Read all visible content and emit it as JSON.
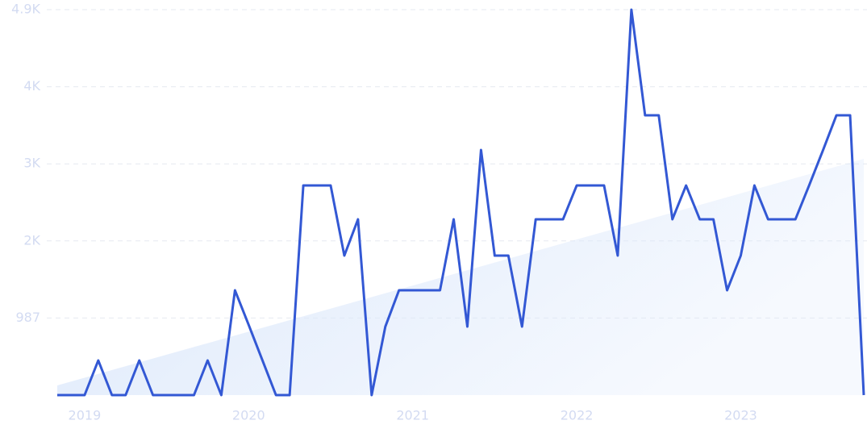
{
  "chart_data": {
    "type": "line",
    "categories": [
      null,
      null,
      "2019",
      null,
      null,
      null,
      null,
      null,
      null,
      null,
      null,
      null,
      null,
      null,
      "2020",
      null,
      null,
      null,
      null,
      null,
      null,
      null,
      null,
      null,
      null,
      null,
      "2021",
      null,
      null,
      null,
      null,
      null,
      null,
      null,
      null,
      null,
      null,
      null,
      "2022",
      null,
      null,
      null,
      null,
      null,
      null,
      null,
      null,
      null,
      null,
      null,
      "2023",
      null,
      null,
      null,
      null,
      null,
      null,
      null,
      null,
      null
    ],
    "series": [
      {
        "color": "#3358d4",
        "values": [
          0,
          0,
          0,
          444,
          0,
          0,
          444,
          0,
          0,
          0,
          0,
          444,
          0,
          1342,
          900,
          450,
          0,
          0,
          2684,
          2684,
          2684,
          1786,
          2251,
          0,
          877,
          1342,
          1342,
          1342,
          1342,
          2251,
          877,
          3139,
          1786,
          1786,
          877,
          2251,
          2251,
          2251,
          2684,
          2684,
          2684,
          1786,
          4935,
          3583,
          3583,
          2251,
          2684,
          2251,
          2251,
          1342,
          1786,
          2684,
          2251,
          2251,
          2251,
          2684,
          3128,
          3583,
          3583,
          0
        ]
      }
    ],
    "trend": {
      "start": 124,
      "end": 3025,
      "color": "#dce8fb"
    },
    "ylim": [
      0,
      4935
    ],
    "yticks": [
      987,
      {
        "value": 1974,
        "label": "2K"
      },
      {
        "value": 2961,
        "label": "3K"
      },
      {
        "value": 3948,
        "label": "4K"
      },
      {
        "value": 4935,
        "label": "4.9K"
      }
    ],
    "grid": true
  }
}
